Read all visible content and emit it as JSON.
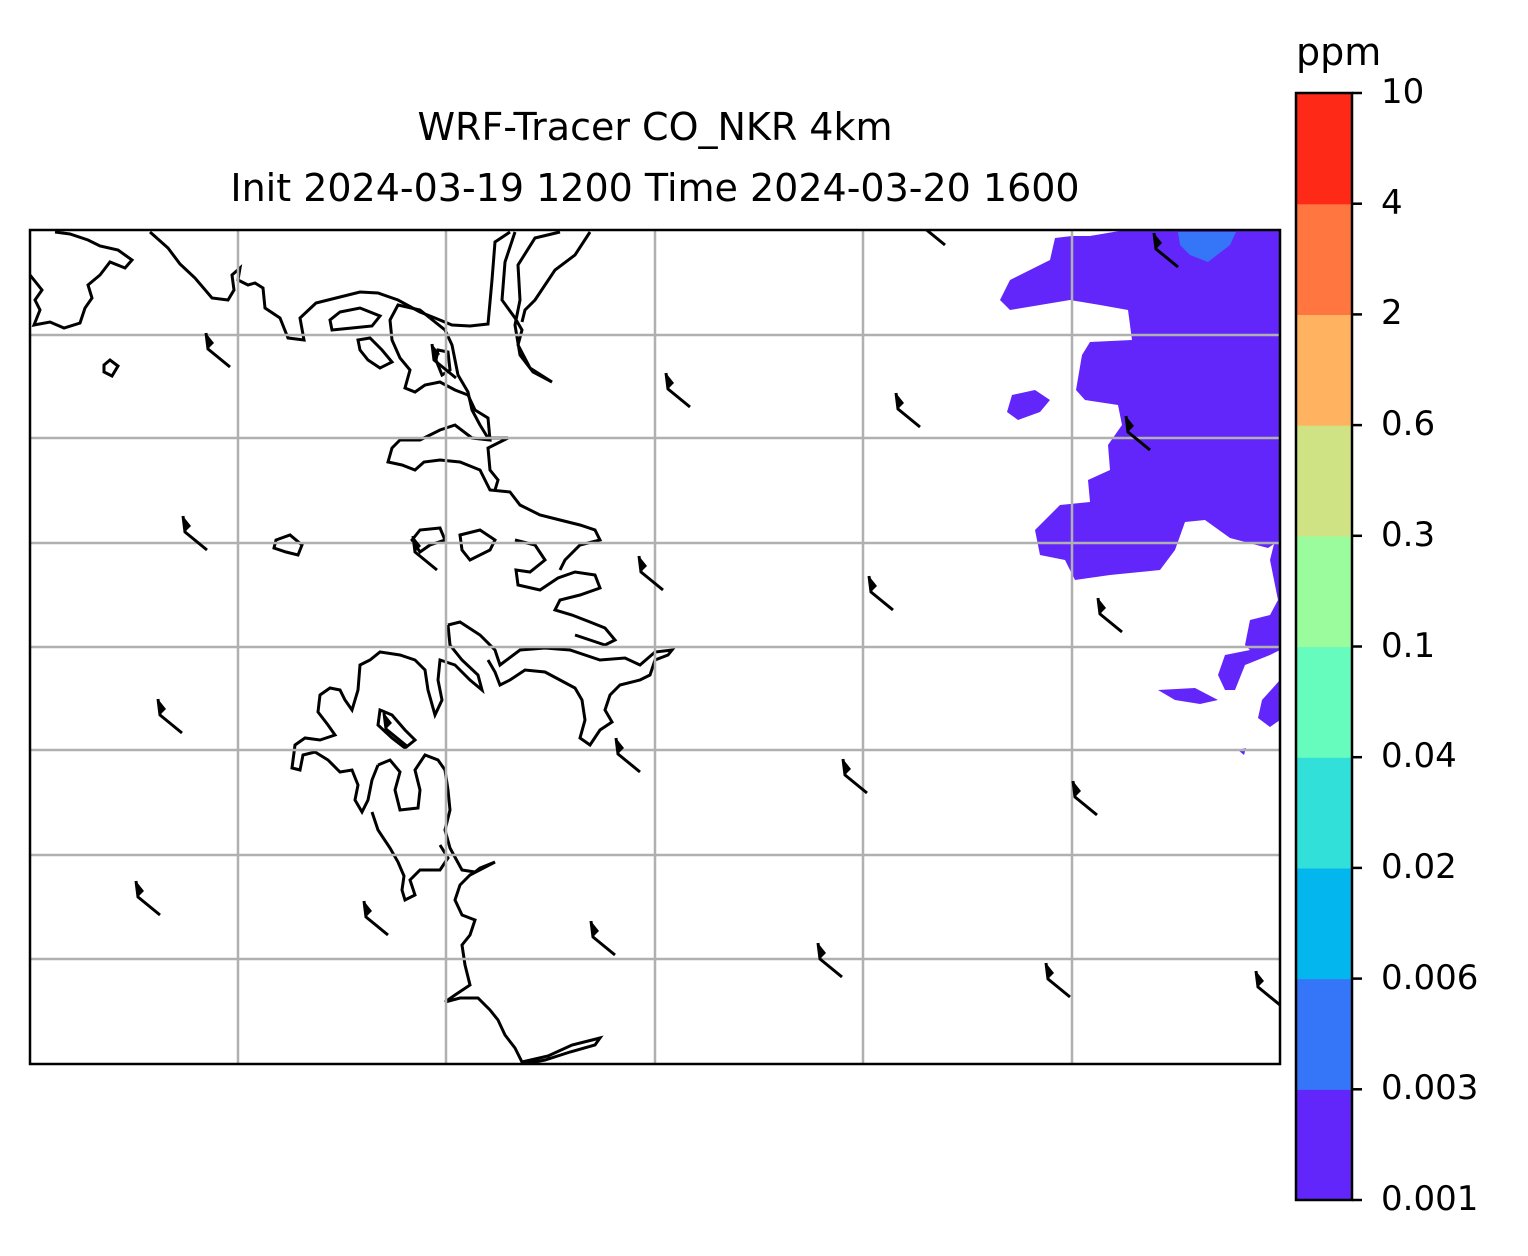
{
  "title": {
    "line1": "WRF-Tracer CO_NKR 4km",
    "line2": "Init 2024-03-19 1200 Time 2024-03-20 1600"
  },
  "colorbar": {
    "unit": "ppm",
    "ticks": [
      "0.001",
      "0.003",
      "0.006",
      "0.02",
      "0.04",
      "0.1",
      "0.3",
      "0.6",
      "2",
      "4",
      "10"
    ],
    "colors": [
      "#6226fb",
      "#3476f7",
      "#03b7ee",
      "#31e1d9",
      "#66fcbd",
      "#9afc9c",
      "#d0e384",
      "#ffb360",
      "#ff7640",
      "#ff2918"
    ]
  },
  "map": {
    "gridlines": true,
    "coastline_color": "#000000",
    "grid_color": "#b0b0b0"
  }
}
